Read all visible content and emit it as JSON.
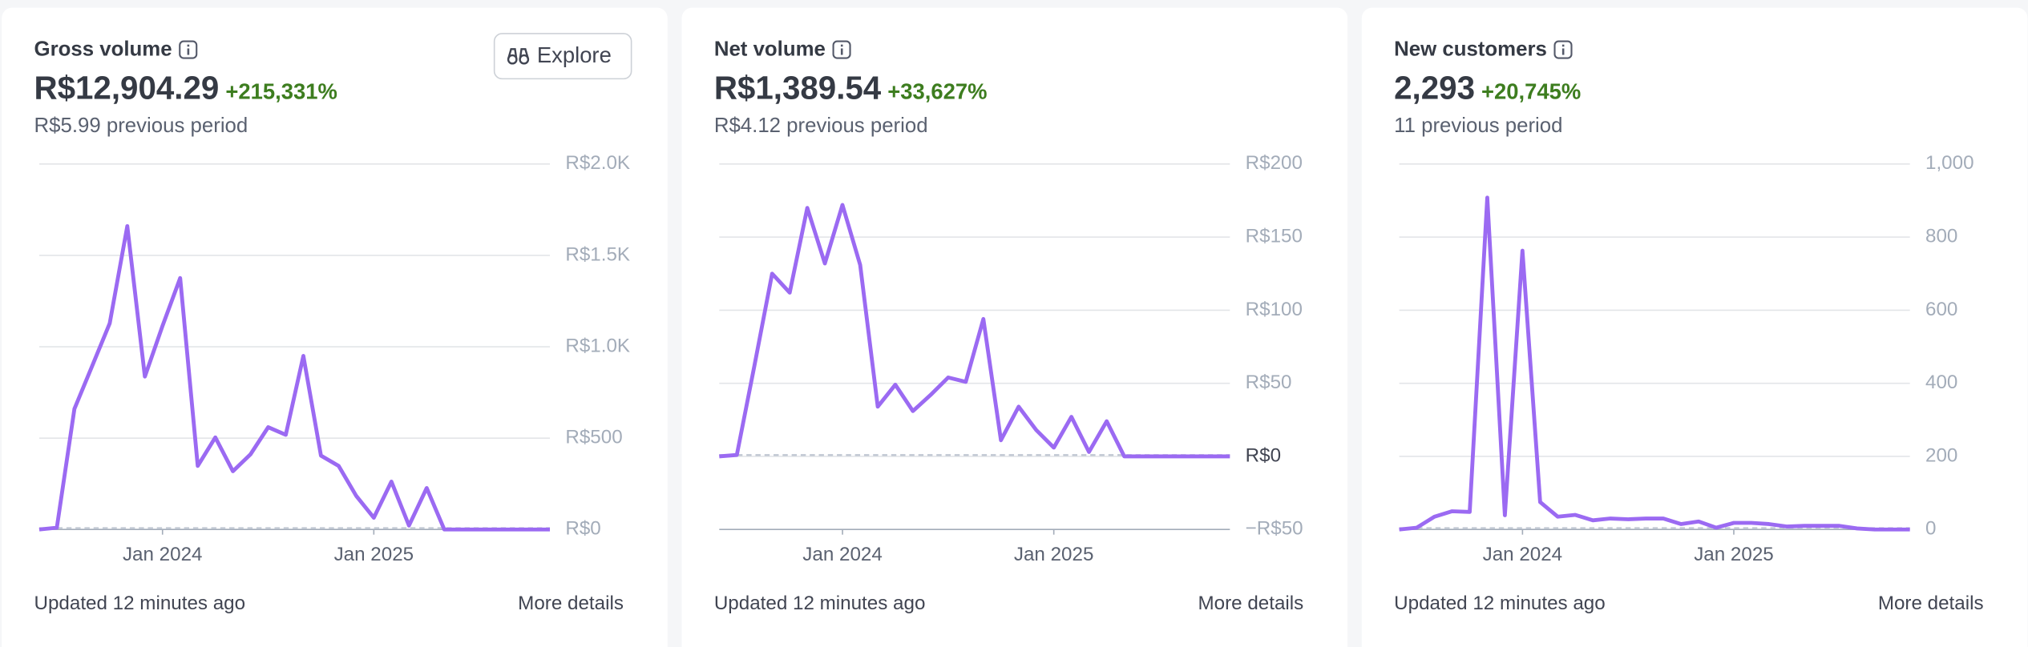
{
  "chart_data": [
    {
      "type": "line",
      "title": "Gross volume",
      "value": "R$12,904.29",
      "change": "+215,331%",
      "previous": "R$5.99 previous period",
      "button": "Explore",
      "categories": [
        null,
        null,
        null,
        null,
        null,
        null,
        null,
        "Jan 2024",
        null,
        null,
        null,
        null,
        null,
        null,
        null,
        null,
        null,
        null,
        null,
        "Jan 2025",
        null,
        null,
        null,
        null,
        null,
        null,
        null,
        null,
        null,
        null
      ],
      "values": [
        0,
        10,
        660,
        894,
        1128,
        1660,
        837,
        1113,
        1376,
        348,
        504,
        319,
        411,
        560,
        518,
        950,
        404,
        348,
        184,
        64,
        262,
        21,
        227,
        0,
        0,
        0,
        0,
        0,
        0,
        0
      ],
      "color": "#9b6af2",
      "ylim": [
        0,
        2000
      ],
      "yticks": [
        {
          "value": 0,
          "label": "R$0"
        },
        {
          "value": 500,
          "label": "R$500"
        },
        {
          "value": 1000,
          "label": "R$1.0K"
        },
        {
          "value": 1500,
          "label": "R$1.5K"
        },
        {
          "value": 2000,
          "label": "R$2.0K"
        }
      ],
      "grid": true,
      "updated": "Updated 12 minutes ago",
      "link": "More details"
    },
    {
      "type": "line",
      "title": "Net volume",
      "value": "R$1,389.54",
      "change": "+33,627%",
      "previous": "R$4.12 previous period",
      "categories": [
        null,
        null,
        null,
        null,
        null,
        null,
        null,
        "Jan 2024",
        null,
        null,
        null,
        null,
        null,
        null,
        null,
        null,
        null,
        null,
        null,
        "Jan 2025",
        null,
        null,
        null,
        null,
        null,
        null,
        null,
        null,
        null,
        null
      ],
      "values": [
        0,
        1,
        62,
        125,
        112,
        170,
        132,
        172,
        131,
        34,
        49,
        31,
        42,
        54,
        51,
        94,
        11,
        34,
        18,
        6,
        27,
        3,
        24,
        0,
        0,
        0,
        0,
        0,
        0,
        0
      ],
      "color": "#9b6af2",
      "ylim": [
        -50,
        200
      ],
      "yticks": [
        {
          "value": -50,
          "label": "−R$50"
        },
        {
          "value": 0,
          "label": "R$0"
        },
        {
          "value": 50,
          "label": "R$50"
        },
        {
          "value": 100,
          "label": "R$100"
        },
        {
          "value": 150,
          "label": "R$150"
        },
        {
          "value": 200,
          "label": "R$200"
        }
      ],
      "grid": true,
      "updated": "Updated 12 minutes ago",
      "link": "More details"
    },
    {
      "type": "line",
      "title": "New customers",
      "value": "2,293",
      "change": "+20,745%",
      "previous": "11 previous period",
      "categories": [
        null,
        null,
        null,
        null,
        null,
        null,
        null,
        "Jan 2024",
        null,
        null,
        null,
        null,
        null,
        null,
        null,
        null,
        null,
        null,
        null,
        "Jan 2025",
        null,
        null,
        null,
        null,
        null,
        null,
        null,
        null,
        null,
        null
      ],
      "values": [
        0,
        5,
        35,
        50,
        48,
        908,
        39,
        763,
        75,
        35,
        40,
        25,
        30,
        28,
        30,
        30,
        15,
        22,
        5,
        18,
        18,
        15,
        8,
        10,
        10,
        10,
        3,
        0,
        0,
        0
      ],
      "color": "#9b6af2",
      "ylim": [
        0,
        1000
      ],
      "yticks": [
        0,
        200,
        400,
        600,
        800,
        {
          "value": 1000,
          "label": "1,000"
        }
      ],
      "grid": true,
      "updated": "Updated 12 minutes ago",
      "link": "More details"
    }
  ]
}
